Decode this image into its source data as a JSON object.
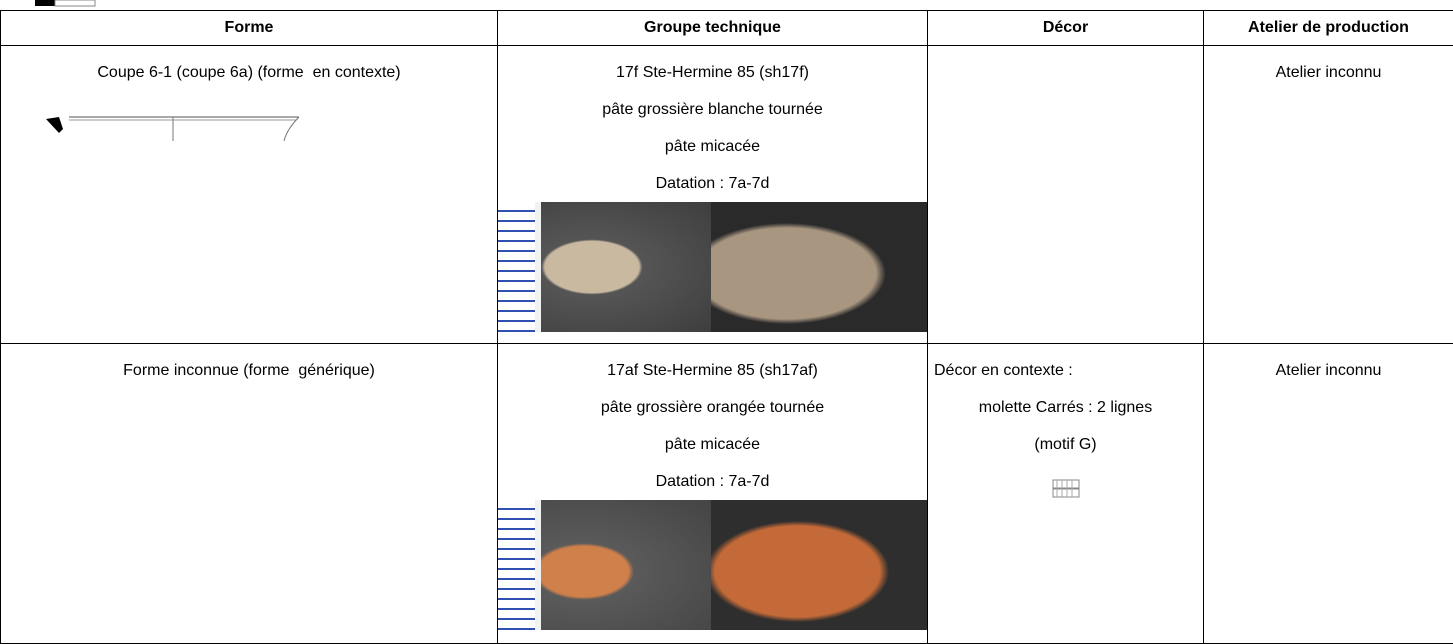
{
  "table": {
    "headers": [
      "Forme",
      "Groupe technique",
      "Décor",
      "Atelier de production"
    ],
    "rows": [
      {
        "forme": "Coupe 6-1 (coupe 6a) (forme  en contexte)",
        "groupe": [
          "17f Ste-Hermine 85 (sh17f)",
          "pâte grossière blanche tournée",
          "pâte micacée",
          "Datation : 7a-7d"
        ],
        "decor": [],
        "atelier": "Atelier inconnu"
      },
      {
        "forme": "Forme inconnue (forme  générique)",
        "groupe": [
          "17af Ste-Hermine 85 (sh17af)",
          "pâte grossière orangée tournée",
          "pâte micacée",
          "Datation : 7a-7d"
        ],
        "decor": [
          "Décor en contexte :",
          "molette Carrés : 2 lignes",
          "(motif G)"
        ],
        "atelier": "Atelier inconnu"
      }
    ]
  }
}
